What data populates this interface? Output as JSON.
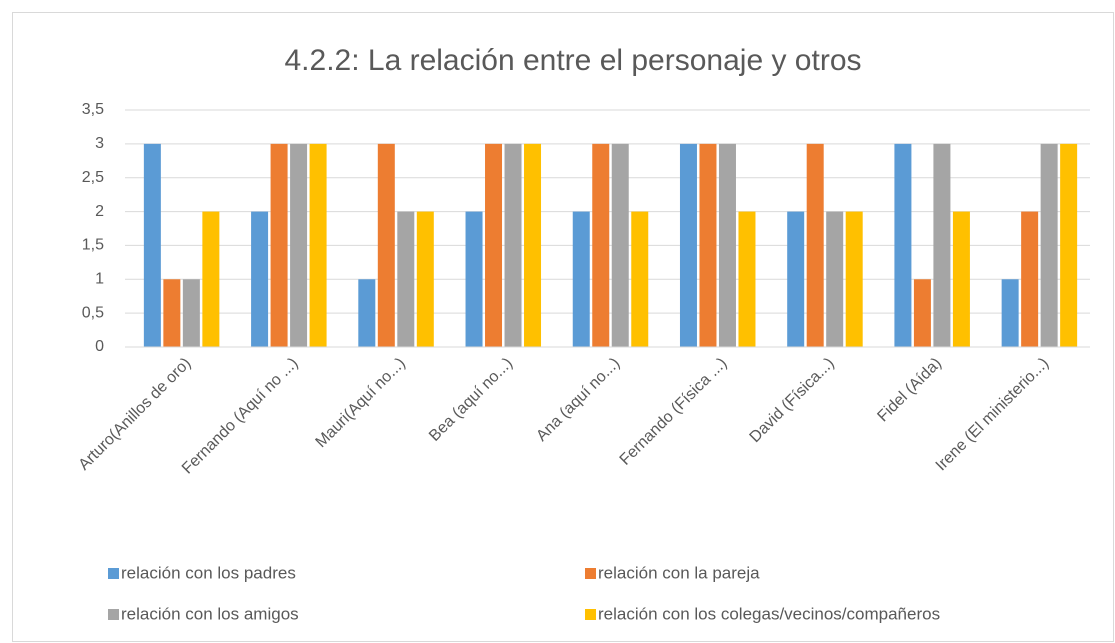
{
  "chart_data": {
    "type": "bar",
    "title": "4.2.2: La relación entre el personaje y otros",
    "categories": [
      "Arturo(Anillos de oro)",
      "Fernando (Aquí no ...)",
      "Mauri(Aquí no...)",
      "Bea (aquí no...)",
      "Ana (aquí no...)",
      "Fernando (Física ...)",
      "David (Física...)",
      "Fidel (Aída)",
      "Irene (El ministerio...)"
    ],
    "series": [
      {
        "name": "relación con los padres",
        "color": "#5b9bd5",
        "values": [
          3,
          2,
          1,
          2,
          2,
          3,
          2,
          3,
          1
        ]
      },
      {
        "name": "relación con la pareja",
        "color": "#ed7d31",
        "values": [
          1,
          3,
          3,
          3,
          3,
          3,
          3,
          1,
          2
        ]
      },
      {
        "name": "relación con los amigos",
        "color": "#a5a5a5",
        "values": [
          1,
          3,
          2,
          3,
          3,
          3,
          2,
          3,
          3
        ]
      },
      {
        "name": "relación con los colegas/vecinos/compañeros",
        "color": "#ffc000",
        "values": [
          2,
          3,
          2,
          3,
          2,
          2,
          2,
          2,
          3
        ]
      }
    ],
    "ylim": [
      0,
      3.5
    ],
    "yticks": [
      0,
      {
        "value": 0.5,
        "label": "0,5"
      },
      1,
      {
        "value": 1.5,
        "label": "1,5"
      },
      2,
      {
        "value": 2.5,
        "label": "2,5"
      },
      3,
      {
        "value": 3.5,
        "label": "3,5"
      }
    ],
    "grid": true,
    "legend": "bottom"
  }
}
